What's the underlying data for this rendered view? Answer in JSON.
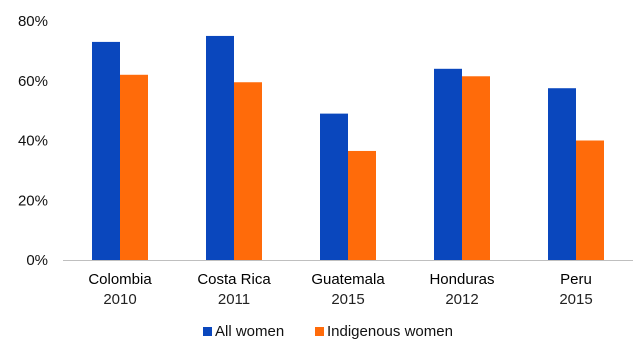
{
  "chart_data": {
    "type": "bar",
    "categories": [
      {
        "name": "Colombia",
        "year": "2010"
      },
      {
        "name": "Costa Rica",
        "year": "2011"
      },
      {
        "name": "Guatemala",
        "year": "2015"
      },
      {
        "name": "Honduras",
        "year": "2012"
      },
      {
        "name": "Peru",
        "year": "2015"
      }
    ],
    "series": [
      {
        "name": "All women",
        "color": "#0a47bd",
        "values": [
          73,
          75,
          49,
          64,
          57.5
        ]
      },
      {
        "name": "Indigenous women",
        "color": "#ff6b0a",
        "values": [
          62,
          59.5,
          36.5,
          61.5,
          40
        ]
      }
    ],
    "ylim": [
      0,
      80
    ],
    "yticks": [
      0,
      20,
      40,
      60,
      80
    ],
    "ytick_labels": [
      "0%",
      "20%",
      "40%",
      "60%",
      "80%"
    ],
    "grid": false,
    "legend_position": "bottom"
  }
}
